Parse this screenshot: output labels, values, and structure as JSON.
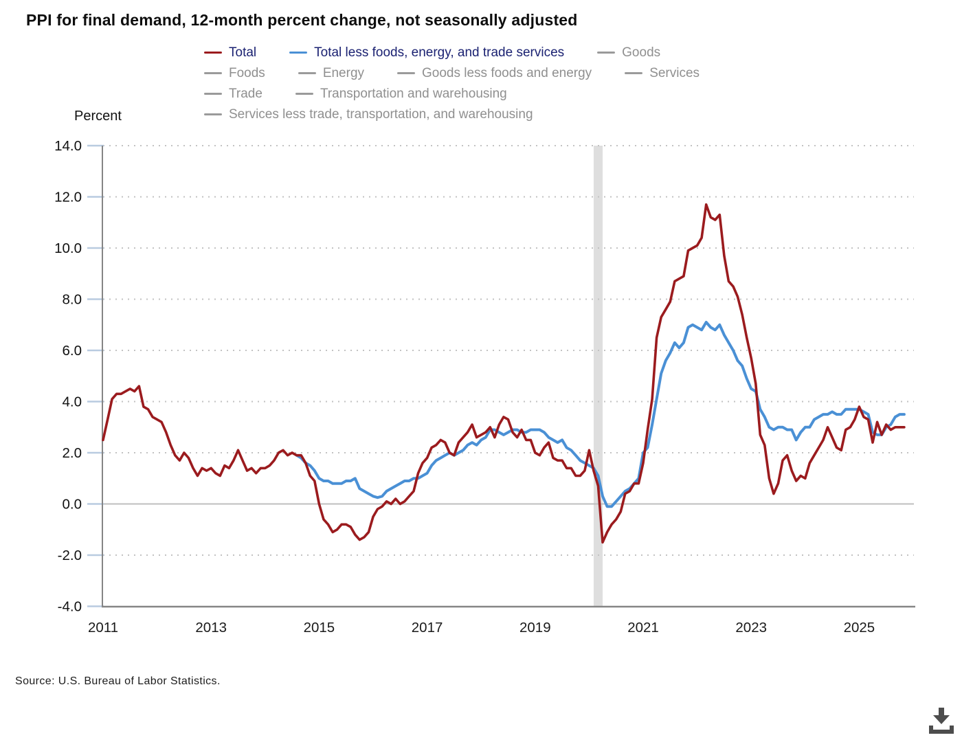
{
  "title": "PPI for final demand, 12-month percent change, not seasonally adjusted",
  "source": "Source: U.S. Bureau of Labor Statistics.",
  "percent_label": "Percent",
  "colors": {
    "total": "#9b1b1e",
    "core": "#4a90d5",
    "inactive": "#9a9a9a",
    "active_text": "#1b2272",
    "inactive_text": "#8f8f8f",
    "axis": "#858585",
    "grid_dotted": "#c2c2c2",
    "zero_line": "#bfbfbf",
    "tick": "#b9cbe0",
    "recession_band": "#dedede",
    "download_icon": "#4d4d4d"
  },
  "legend": {
    "rows": [
      [
        {
          "label": "Total",
          "active": true,
          "color": "#9b1b1e"
        },
        {
          "label": "Total less foods, energy, and trade services",
          "active": true,
          "color": "#4a90d5"
        },
        {
          "label": "Goods",
          "active": false,
          "color": "#9a9a9a"
        }
      ],
      [
        {
          "label": "Foods",
          "active": false,
          "color": "#9a9a9a"
        },
        {
          "label": "Energy",
          "active": false,
          "color": "#9a9a9a"
        },
        {
          "label": "Goods less foods and energy",
          "active": false,
          "color": "#9a9a9a"
        },
        {
          "label": "Services",
          "active": false,
          "color": "#9a9a9a"
        }
      ],
      [
        {
          "label": "Trade",
          "active": false,
          "color": "#9a9a9a"
        },
        {
          "label": "Transportation and warehousing",
          "active": false,
          "color": "#9a9a9a"
        }
      ],
      [
        {
          "label": "Services less trade, transportation, and warehousing",
          "active": false,
          "color": "#9a9a9a"
        }
      ]
    ]
  },
  "axis": {
    "y_ticks": [
      {
        "v": 14,
        "label": "14.0"
      },
      {
        "v": 12,
        "label": "12.0"
      },
      {
        "v": 10,
        "label": "10.0"
      },
      {
        "v": 8,
        "label": "8.0"
      },
      {
        "v": 6,
        "label": "6.0"
      },
      {
        "v": 4,
        "label": "4.0"
      },
      {
        "v": 2,
        "label": "2.0"
      },
      {
        "v": 0,
        "label": "0.0"
      },
      {
        "v": -2,
        "label": "-2.0"
      },
      {
        "v": -4,
        "label": "-4.0"
      }
    ],
    "x_ticks": [
      {
        "year": 2011,
        "label": "2011"
      },
      {
        "year": 2013,
        "label": "2013"
      },
      {
        "year": 2015,
        "label": "2015"
      },
      {
        "year": 2017,
        "label": "2017"
      },
      {
        "year": 2019,
        "label": "2019"
      },
      {
        "year": 2021,
        "label": "2021"
      },
      {
        "year": 2023,
        "label": "2023"
      },
      {
        "year": 2025,
        "label": "2025"
      }
    ]
  },
  "chart_data": {
    "type": "line",
    "title": "PPI for final demand, 12-month percent change, not seasonally adjusted",
    "ylabel": "Percent",
    "ylim": [
      -4,
      14
    ],
    "grid": "dotted-horizontal",
    "legend_position": "top",
    "frequency": "monthly",
    "x_start": "2011-01",
    "x_end": "2025-11",
    "recession_band": {
      "from": "2020-02",
      "to": "2020-04"
    },
    "series": [
      {
        "name": "Total",
        "color": "#9b1b1e",
        "start": "2011-01",
        "values": [
          2.5,
          3.3,
          4.1,
          4.3,
          4.3,
          4.4,
          4.5,
          4.4,
          4.6,
          3.8,
          3.7,
          3.4,
          3.3,
          3.2,
          2.8,
          2.3,
          1.9,
          1.7,
          2.0,
          1.8,
          1.4,
          1.1,
          1.4,
          1.3,
          1.4,
          1.2,
          1.1,
          1.5,
          1.4,
          1.7,
          2.1,
          1.7,
          1.3,
          1.4,
          1.2,
          1.4,
          1.4,
          1.5,
          1.7,
          2.0,
          2.1,
          1.9,
          2.0,
          1.9,
          1.9,
          1.6,
          1.1,
          0.9,
          0.0,
          -0.6,
          -0.8,
          -1.1,
          -1.0,
          -0.8,
          -0.8,
          -0.9,
          -1.2,
          -1.4,
          -1.3,
          -1.1,
          -0.5,
          -0.2,
          -0.1,
          0.1,
          0.0,
          0.2,
          0.0,
          0.1,
          0.3,
          0.5,
          1.2,
          1.6,
          1.8,
          2.2,
          2.3,
          2.5,
          2.4,
          2.0,
          1.9,
          2.4,
          2.6,
          2.8,
          3.1,
          2.6,
          2.7,
          2.8,
          3.0,
          2.6,
          3.1,
          3.4,
          3.3,
          2.8,
          2.6,
          2.9,
          2.5,
          2.5,
          2.0,
          1.9,
          2.2,
          2.4,
          1.8,
          1.7,
          1.7,
          1.4,
          1.4,
          1.1,
          1.1,
          1.3,
          2.1,
          1.3,
          0.7,
          -1.5,
          -1.1,
          -0.8,
          -0.6,
          -0.3,
          0.4,
          0.5,
          0.8,
          0.8,
          1.6,
          2.9,
          4.1,
          6.5,
          7.3,
          7.6,
          7.9,
          8.7,
          8.8,
          8.9,
          9.9,
          10.0,
          10.1,
          10.4,
          11.7,
          11.2,
          11.1,
          11.3,
          9.7,
          8.7,
          8.5,
          8.1,
          7.4,
          6.5,
          5.7,
          4.7,
          2.7,
          2.3,
          1.0,
          0.4,
          0.8,
          1.7,
          1.9,
          1.3,
          0.9,
          1.1,
          1.0,
          1.6,
          1.9,
          2.2,
          2.5,
          3.0,
          2.6,
          2.2,
          2.1,
          2.9,
          3.0,
          3.3,
          3.8,
          3.4,
          3.3,
          2.4,
          3.2,
          2.7,
          3.1,
          2.9,
          3.0,
          3.0,
          3.0
        ]
      },
      {
        "name": "Total less foods, energy, and trade services",
        "color": "#4a90d5",
        "start": "2014-08",
        "values": [
          1.9,
          1.8,
          1.6,
          1.5,
          1.3,
          1.0,
          0.9,
          0.9,
          0.8,
          0.8,
          0.8,
          0.9,
          0.9,
          1.0,
          0.6,
          0.5,
          0.4,
          0.3,
          0.25,
          0.3,
          0.5,
          0.6,
          0.7,
          0.8,
          0.9,
          0.9,
          1.0,
          1.0,
          1.1,
          1.2,
          1.5,
          1.7,
          1.8,
          1.9,
          2.0,
          1.9,
          2.0,
          2.1,
          2.3,
          2.4,
          2.3,
          2.5,
          2.6,
          2.9,
          2.9,
          2.8,
          2.7,
          2.8,
          2.9,
          2.9,
          2.8,
          2.8,
          2.9,
          2.9,
          2.9,
          2.8,
          2.6,
          2.5,
          2.4,
          2.5,
          2.2,
          2.1,
          1.9,
          1.7,
          1.6,
          1.5,
          1.4,
          1.1,
          0.3,
          -0.1,
          -0.1,
          0.1,
          0.3,
          0.5,
          0.6,
          0.8,
          1.0,
          2.0,
          2.2,
          3.1,
          4.1,
          5.1,
          5.6,
          5.9,
          6.3,
          6.1,
          6.3,
          6.9,
          7.0,
          6.9,
          6.8,
          7.1,
          6.9,
          6.8,
          7.0,
          6.6,
          6.3,
          6.0,
          5.6,
          5.4,
          4.9,
          4.5,
          4.4,
          3.7,
          3.4,
          3.0,
          2.9,
          3.0,
          3.0,
          2.9,
          2.9,
          2.5,
          2.8,
          3.0,
          3.0,
          3.3,
          3.4,
          3.5,
          3.5,
          3.6,
          3.5,
          3.5,
          3.7,
          3.7,
          3.7,
          3.7,
          3.6,
          3.5,
          2.8,
          2.7,
          2.7,
          3.0,
          3.1,
          3.4,
          3.5,
          3.5
        ]
      }
    ],
    "inactive_series": [
      "Goods",
      "Foods",
      "Energy",
      "Goods less foods and energy",
      "Services",
      "Trade",
      "Transportation and warehousing",
      "Services less trade, transportation, and warehousing"
    ]
  }
}
